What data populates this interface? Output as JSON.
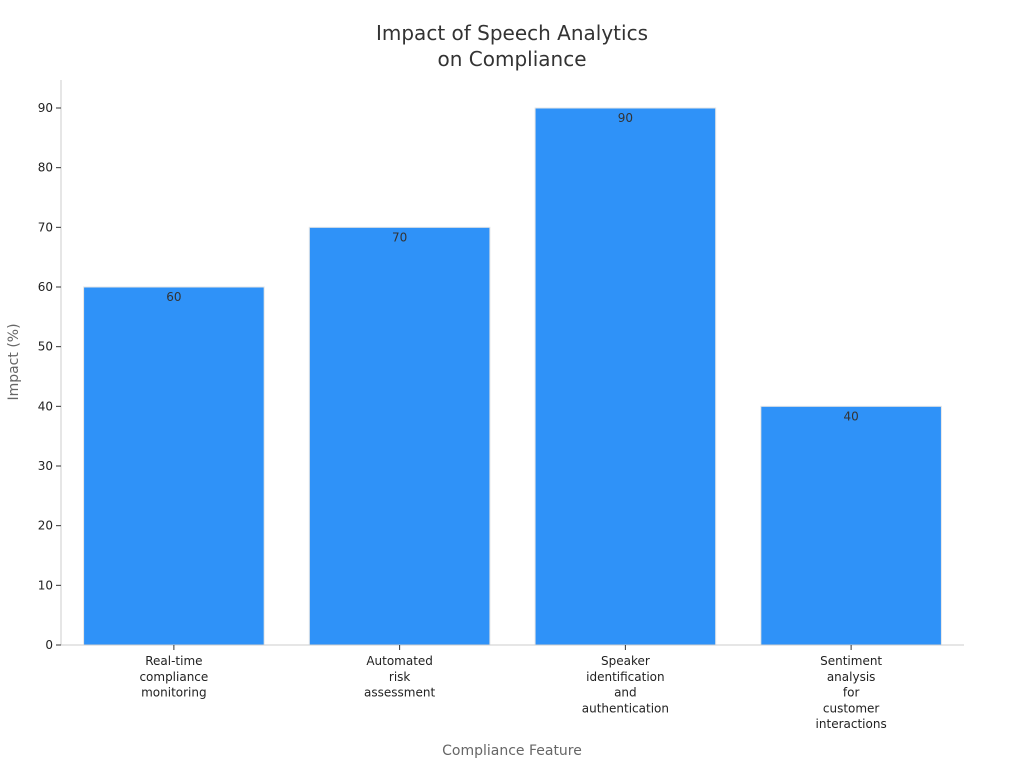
{
  "chart_data": {
    "type": "bar",
    "title_lines": [
      "Impact of Speech Analytics",
      "on Compliance"
    ],
    "xlabel": "Compliance Feature",
    "ylabel": "Impact (%)",
    "ylim": [
      0,
      90
    ],
    "yticks": [
      0,
      10,
      20,
      30,
      40,
      50,
      60,
      70,
      80,
      90
    ],
    "categories": [
      [
        "Real-time",
        "compliance",
        "monitoring"
      ],
      [
        "Automated",
        "risk",
        "assessment"
      ],
      [
        "Speaker",
        "identification",
        "and",
        "authentication"
      ],
      [
        "Sentiment",
        "analysis",
        "for",
        "customer",
        "interactions"
      ]
    ],
    "values": [
      60,
      70,
      90,
      40
    ],
    "data_labels": [
      "60",
      "70",
      "90",
      "40"
    ],
    "bar_color": "#2f92f8",
    "axis_color": "#cccccc",
    "grid": false,
    "legend": "none"
  }
}
